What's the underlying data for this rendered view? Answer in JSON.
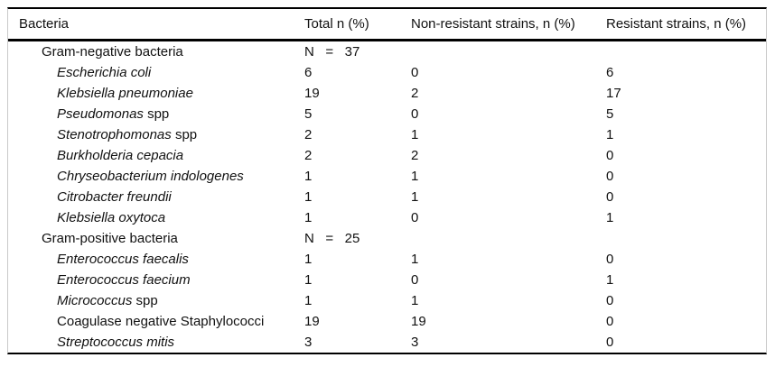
{
  "table": {
    "columns": [
      "Bacteria",
      "Total n (%)",
      "Non-resistant strains, n (%)",
      "Resistant strains, n (%)"
    ],
    "rows": [
      {
        "indent": false,
        "name_italic": "",
        "name_roman": "Gram-negative bacteria",
        "total": "N   =   37",
        "nonresistant": "",
        "resistant": ""
      },
      {
        "indent": true,
        "name_italic": "Escherichia coli",
        "name_roman": "",
        "total": "6",
        "nonresistant": "0",
        "resistant": "6"
      },
      {
        "indent": true,
        "name_italic": "Klebsiella pneumoniae",
        "name_roman": "",
        "total": "19",
        "nonresistant": "2",
        "resistant": "17"
      },
      {
        "indent": true,
        "name_italic": "Pseudomonas",
        "name_roman": " spp",
        "total": "5",
        "nonresistant": "0",
        "resistant": "5"
      },
      {
        "indent": true,
        "name_italic": "Stenotrophomonas",
        "name_roman": " spp",
        "total": "2",
        "nonresistant": "1",
        "resistant": "1"
      },
      {
        "indent": true,
        "name_italic": "Burkholderia cepacia",
        "name_roman": "",
        "total": "2",
        "nonresistant": "2",
        "resistant": "0"
      },
      {
        "indent": true,
        "name_italic": "Chryseobacterium indologenes",
        "name_roman": "",
        "total": "1",
        "nonresistant": "1",
        "resistant": "0"
      },
      {
        "indent": true,
        "name_italic": "Citrobacter freundii",
        "name_roman": "",
        "total": "1",
        "nonresistant": "1",
        "resistant": "0"
      },
      {
        "indent": true,
        "name_italic": "Klebsiella oxytoca",
        "name_roman": "",
        "total": "1",
        "nonresistant": "0",
        "resistant": "1"
      },
      {
        "indent": false,
        "name_italic": "",
        "name_roman": "Gram-positive bacteria",
        "total": "N   =   25",
        "nonresistant": "",
        "resistant": ""
      },
      {
        "indent": true,
        "name_italic": "Enterococcus faecalis",
        "name_roman": "",
        "total": "1",
        "nonresistant": "1",
        "resistant": "0"
      },
      {
        "indent": true,
        "name_italic": "Enterococcus faecium",
        "name_roman": "",
        "total": "1",
        "nonresistant": "0",
        "resistant": "1"
      },
      {
        "indent": true,
        "name_italic": "Micrococcus",
        "name_roman": " spp",
        "total": "1",
        "nonresistant": "1",
        "resistant": "0"
      },
      {
        "indent": true,
        "name_italic": "",
        "name_roman": "Coagulase negative Staphylococci",
        "total": "19",
        "nonresistant": "19",
        "resistant": "0"
      },
      {
        "indent": true,
        "name_italic": "Streptococcus mitis",
        "name_roman": "",
        "total": "3",
        "nonresistant": "3",
        "resistant": "0"
      }
    ]
  },
  "colors": {
    "rule": "#000000",
    "frame": "#c9c9c9",
    "text": "#111111",
    "background": "#ffffff"
  }
}
